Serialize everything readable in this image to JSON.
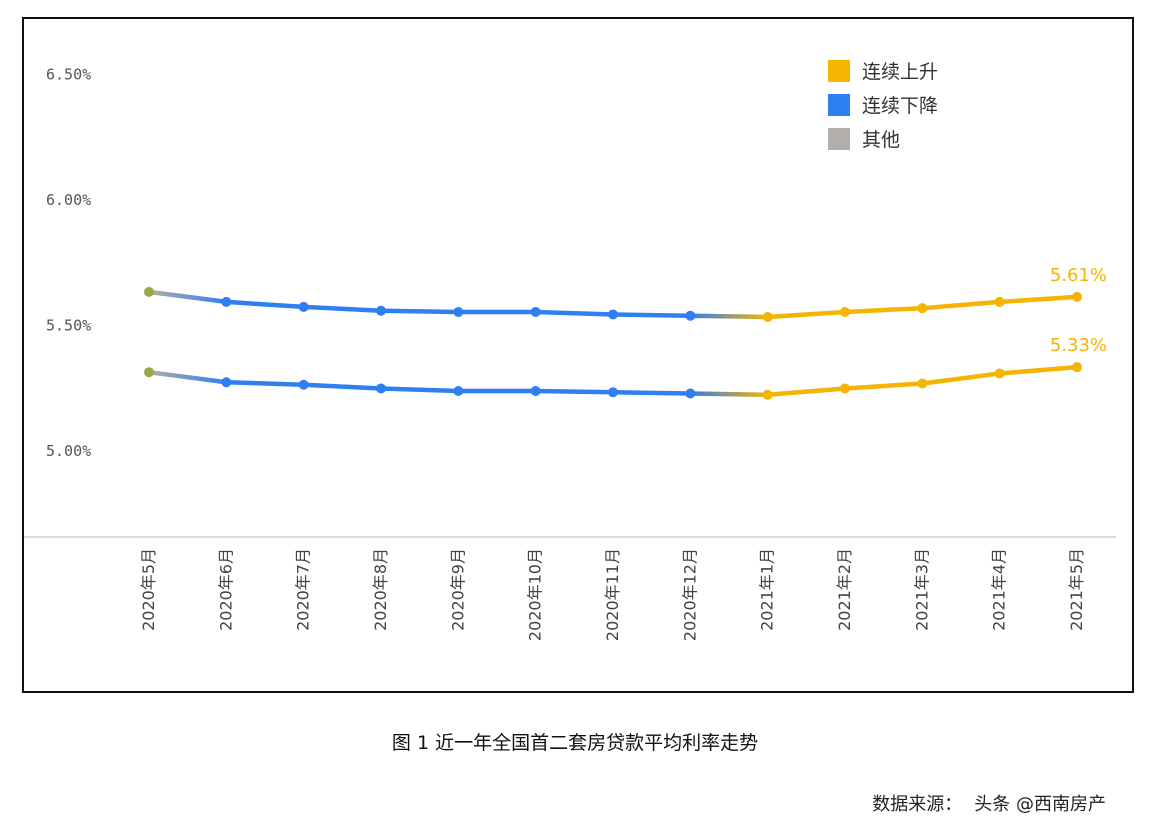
{
  "caption": "图 1  近一年全国首二套房贷款平均利率走势",
  "source_label": "数据来源：",
  "watermark": "头条 @西南房产",
  "chart_data": {
    "type": "line",
    "categories": [
      "2020年5月",
      "2020年6月",
      "2020年7月",
      "2020年8月",
      "2020年9月",
      "2020年10月",
      "2020年11月",
      "2020年12月",
      "2021年1月",
      "2021年2月",
      "2021年3月",
      "2021年4月",
      "2021年5月"
    ],
    "series": [
      {
        "values": [
          5.63,
          5.59,
          5.57,
          5.555,
          5.55,
          5.55,
          5.54,
          5.535,
          5.53,
          5.55,
          5.565,
          5.59,
          5.61
        ]
      },
      {
        "values": [
          5.31,
          5.27,
          5.26,
          5.245,
          5.235,
          5.235,
          5.23,
          5.225,
          5.22,
          5.245,
          5.265,
          5.305,
          5.33
        ]
      }
    ],
    "point_trend": [
      "other",
      "down",
      "down",
      "down",
      "down",
      "down",
      "down",
      "down",
      "up",
      "up",
      "up",
      "up",
      "up"
    ],
    "end_labels": [
      "5.61%",
      "5.33%"
    ],
    "yticks": [
      "6.50%",
      "6.00%",
      "5.50%",
      "5.00%"
    ],
    "ytick_values": [
      6.5,
      6.0,
      5.5,
      5.0
    ],
    "ylim": [
      4.65,
      6.6
    ],
    "legend": [
      {
        "label": "连续上升",
        "color": "#f4b400"
      },
      {
        "label": "连续下降",
        "color": "#2f7ff0"
      },
      {
        "label": "其他",
        "color": "#b3adab"
      }
    ],
    "legend_position": "top-right",
    "grid": false
  }
}
